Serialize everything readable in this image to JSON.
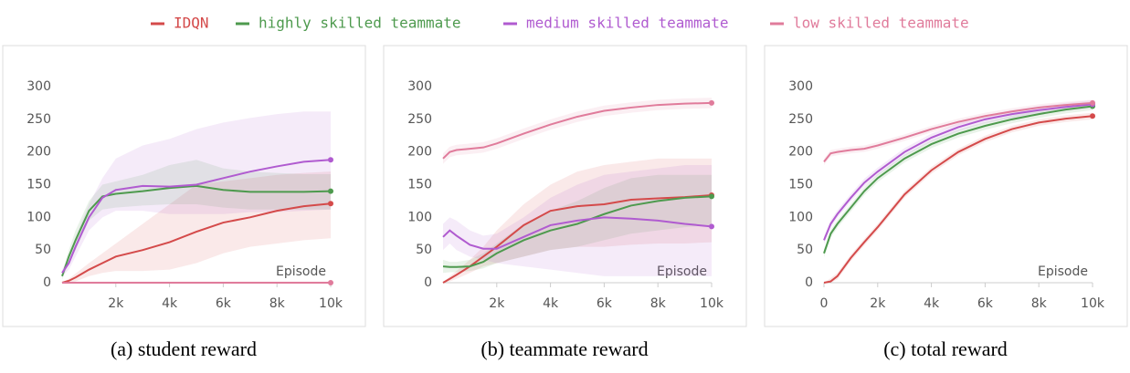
{
  "chart_data": [
    {
      "type": "line",
      "caption": "(a) student reward",
      "xlabel": "Episode",
      "x": [
        0,
        250,
        500,
        1000,
        1500,
        2000,
        3000,
        4000,
        5000,
        6000,
        7000,
        8000,
        9000,
        10000
      ],
      "xlim": [
        0,
        10000
      ],
      "ylim": [
        0,
        300
      ],
      "xticks": [
        {
          "value": 2000,
          "label": "2k"
        },
        {
          "value": 4000,
          "label": "4k"
        },
        {
          "value": 6000,
          "label": "6k"
        },
        {
          "value": 8000,
          "label": "8k"
        },
        {
          "value": 10000,
          "label": "10k"
        }
      ],
      "yticks": [
        0,
        50,
        100,
        150,
        200,
        250,
        300
      ],
      "series": [
        {
          "name": "IDQN",
          "color": "#d44a4a",
          "values": [
            0,
            3,
            8,
            20,
            30,
            40,
            50,
            62,
            78,
            92,
            100,
            110,
            117,
            121
          ],
          "lower": [
            0,
            0,
            2,
            10,
            15,
            18,
            18,
            20,
            30,
            45,
            55,
            60,
            65,
            68
          ],
          "upper": [
            0,
            6,
            14,
            30,
            45,
            60,
            90,
            120,
            150,
            155,
            160,
            165,
            168,
            170
          ]
        },
        {
          "name": "highly skilled teammate",
          "color": "#4e9a4e",
          "values": [
            10,
            40,
            65,
            110,
            132,
            136,
            140,
            145,
            148,
            142,
            139,
            139,
            139,
            140
          ],
          "lower": [
            5,
            30,
            50,
            95,
            112,
            115,
            118,
            120,
            120,
            115,
            112,
            112,
            112,
            112
          ],
          "upper": [
            15,
            50,
            80,
            125,
            150,
            155,
            165,
            180,
            188,
            175,
            170,
            168,
            166,
            166
          ]
        },
        {
          "name": "medium skilled teammate",
          "color": "#b05bd0",
          "values": [
            15,
            30,
            55,
            100,
            130,
            142,
            148,
            147,
            150,
            160,
            170,
            178,
            185,
            188
          ],
          "lower": [
            10,
            20,
            40,
            80,
            100,
            110,
            110,
            105,
            105,
            105,
            108,
            108,
            110,
            112
          ],
          "upper": [
            20,
            40,
            70,
            120,
            160,
            190,
            210,
            220,
            235,
            245,
            252,
            258,
            262,
            262
          ]
        },
        {
          "name": "low skilled teammate",
          "color": "#e07b9b",
          "values": [
            0,
            0,
            0,
            0,
            0,
            0,
            0,
            0,
            0,
            0,
            0,
            0,
            0,
            0
          ],
          "lower": [
            0,
            0,
            0,
            0,
            0,
            0,
            0,
            0,
            0,
            0,
            0,
            0,
            0,
            0
          ],
          "upper": [
            2,
            2,
            2,
            2,
            2,
            2,
            2,
            2,
            2,
            2,
            2,
            2,
            2,
            2
          ]
        }
      ]
    },
    {
      "type": "line",
      "caption": "(b) teammate reward",
      "xlabel": "Episode",
      "x": [
        0,
        250,
        500,
        1000,
        1500,
        2000,
        3000,
        4000,
        5000,
        6000,
        7000,
        8000,
        9000,
        10000
      ],
      "xlim": [
        0,
        10000
      ],
      "ylim": [
        0,
        300
      ],
      "xticks": [
        {
          "value": 2000,
          "label": "2k"
        },
        {
          "value": 4000,
          "label": "4k"
        },
        {
          "value": 6000,
          "label": "6k"
        },
        {
          "value": 8000,
          "label": "8k"
        },
        {
          "value": 10000,
          "label": "10k"
        }
      ],
      "yticks": [
        0,
        50,
        100,
        150,
        200,
        250,
        300
      ],
      "series": [
        {
          "name": "IDQN",
          "color": "#d44a4a",
          "values": [
            0,
            6,
            12,
            25,
            40,
            55,
            88,
            110,
            117,
            120,
            127,
            129,
            131,
            134
          ],
          "lower": [
            0,
            2,
            6,
            15,
            25,
            30,
            40,
            50,
            55,
            55,
            58,
            60,
            60,
            62
          ],
          "upper": [
            0,
            10,
            18,
            35,
            55,
            80,
            120,
            150,
            170,
            180,
            185,
            190,
            190,
            190
          ]
        },
        {
          "name": "highly skilled teammate",
          "color": "#4e9a4e",
          "values": [
            25,
            24,
            24,
            25,
            32,
            45,
            65,
            80,
            90,
            105,
            118,
            125,
            130,
            132
          ],
          "lower": [
            15,
            16,
            16,
            18,
            22,
            30,
            40,
            50,
            55,
            65,
            75,
            80,
            85,
            88
          ],
          "upper": [
            35,
            32,
            32,
            35,
            45,
            60,
            90,
            110,
            125,
            145,
            160,
            165,
            165,
            165
          ]
        },
        {
          "name": "medium skilled teammate",
          "color": "#b05bd0",
          "values": [
            70,
            80,
            72,
            58,
            52,
            52,
            70,
            88,
            95,
            100,
            98,
            95,
            90,
            86
          ],
          "lower": [
            50,
            60,
            50,
            40,
            35,
            30,
            25,
            20,
            15,
            10,
            10,
            10,
            10,
            10
          ],
          "upper": [
            90,
            100,
            95,
            80,
            72,
            75,
            100,
            130,
            150,
            165,
            170,
            175,
            180,
            180
          ]
        },
        {
          "name": "low skilled teammate",
          "color": "#e07b9b",
          "values": [
            190,
            200,
            203,
            205,
            207,
            213,
            228,
            242,
            254,
            263,
            268,
            272,
            274,
            275
          ],
          "lower": [
            182,
            192,
            195,
            197,
            199,
            205,
            220,
            234,
            246,
            255,
            260,
            264,
            266,
            267
          ],
          "upper": [
            198,
            208,
            211,
            213,
            215,
            221,
            236,
            250,
            262,
            271,
            276,
            280,
            282,
            283
          ]
        }
      ]
    },
    {
      "type": "line",
      "caption": "(c) total reward",
      "xlabel": "Episode",
      "x": [
        0,
        250,
        500,
        1000,
        1500,
        2000,
        3000,
        4000,
        5000,
        6000,
        7000,
        8000,
        9000,
        10000
      ],
      "xlim": [
        0,
        10000
      ],
      "ylim": [
        0,
        300
      ],
      "xticks": [
        0,
        {
          "value": 2000,
          "label": "2k"
        },
        {
          "value": 4000,
          "label": "4k"
        },
        {
          "value": 6000,
          "label": "6k"
        },
        {
          "value": 8000,
          "label": "8k"
        },
        {
          "value": 10000,
          "label": "10k"
        }
      ],
      "yticks": [
        0,
        50,
        100,
        150,
        200,
        250,
        300
      ],
      "series": [
        {
          "name": "IDQN",
          "color": "#d44a4a",
          "values": [
            0,
            2,
            10,
            38,
            62,
            85,
            135,
            172,
            200,
            220,
            235,
            245,
            251,
            255
          ],
          "lower": [
            0,
            0,
            5,
            33,
            57,
            80,
            130,
            167,
            195,
            215,
            230,
            240,
            246,
            250
          ],
          "upper": [
            0,
            7,
            15,
            43,
            67,
            90,
            140,
            177,
            205,
            225,
            240,
            250,
            256,
            260
          ]
        },
        {
          "name": "highly skilled teammate",
          "color": "#4e9a4e",
          "values": [
            45,
            75,
            90,
            115,
            140,
            160,
            190,
            212,
            228,
            240,
            250,
            258,
            265,
            270
          ],
          "lower": [
            39,
            69,
            84,
            109,
            134,
            154,
            184,
            206,
            222,
            234,
            244,
            252,
            259,
            264
          ],
          "upper": [
            51,
            81,
            96,
            121,
            146,
            166,
            196,
            218,
            234,
            246,
            256,
            264,
            271,
            276
          ]
        },
        {
          "name": "medium skilled teammate",
          "color": "#b05bd0",
          "values": [
            65,
            90,
            105,
            130,
            153,
            170,
            200,
            222,
            238,
            250,
            258,
            264,
            269,
            273
          ],
          "lower": [
            59,
            84,
            99,
            124,
            147,
            164,
            194,
            216,
            232,
            244,
            252,
            258,
            263,
            267
          ],
          "upper": [
            71,
            96,
            111,
            136,
            159,
            176,
            206,
            228,
            244,
            256,
            264,
            270,
            275,
            279
          ]
        },
        {
          "name": "low skilled teammate",
          "color": "#e07b9b",
          "values": [
            185,
            198,
            200,
            203,
            205,
            210,
            222,
            235,
            246,
            255,
            262,
            268,
            272,
            275
          ],
          "lower": [
            180,
            193,
            195,
            198,
            200,
            205,
            217,
            230,
            241,
            250,
            257,
            263,
            267,
            270
          ],
          "upper": [
            190,
            203,
            205,
            208,
            210,
            215,
            227,
            240,
            251,
            260,
            267,
            273,
            277,
            280
          ]
        }
      ]
    }
  ]
}
